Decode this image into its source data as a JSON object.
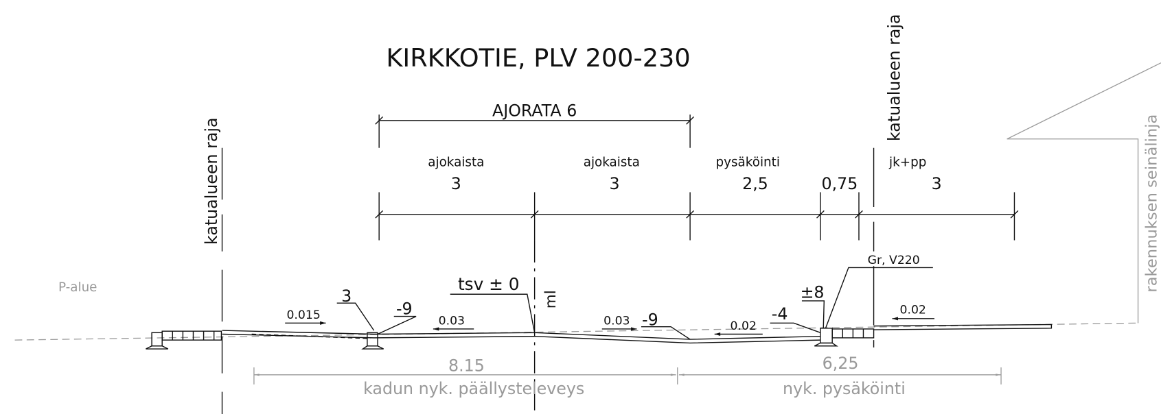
{
  "title": "KIRKKOTIE, PLV 200-230",
  "carriageway": "AJORATA 6",
  "limits": [
    "katualueen raja",
    "katualueen raja"
  ],
  "wall_line": "rakennuksen seinälinja",
  "area": "P-alue",
  "lanes": [
    {
      "name": "ajokaista",
      "width": "3"
    },
    {
      "name": "ajokaista",
      "width": "3"
    },
    {
      "name": "pysäköinti",
      "width": "2,5"
    },
    {
      "width": "0,75"
    },
    {
      "name": "jk+pp",
      "width": "3"
    }
  ],
  "annotations": {
    "tsv": "tsv ± 0",
    "ml": "ml",
    "curb_left_top": "3",
    "curb_left_low": "-9",
    "slope_1": "0.015",
    "slope_2": "0.03",
    "slope_3": "0.03",
    "gutter": "-9",
    "slope_4": "0.02",
    "curb_right_low": "-4",
    "curb_right_top": "±8",
    "stone": "Gr, V220",
    "slope_5": "0.02"
  },
  "existing": [
    {
      "width": "8.15",
      "label": "kadun nyk. päällysteleveys"
    },
    {
      "width": "6,25",
      "label": "nyk. pysäköinti"
    }
  ]
}
